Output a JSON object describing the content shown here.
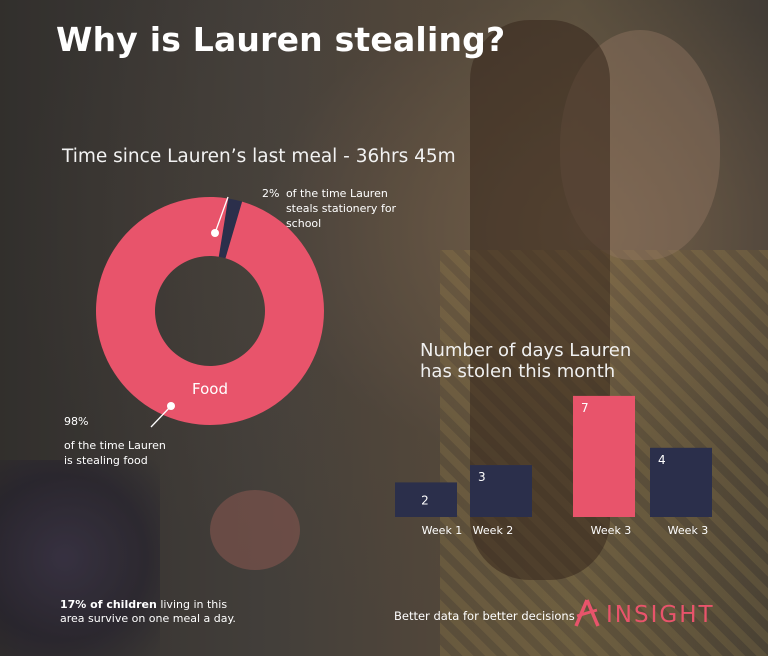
{
  "title": "Why is Lauren stealing?",
  "chart_data": [
    {
      "type": "pie",
      "title": "Time since Lauren’s last meal - 36hrs 45m",
      "slices": [
        {
          "label": "Food",
          "value": 98,
          "color": "#e8546b"
        },
        {
          "label": "Stationery",
          "value": 2,
          "color": "#2b2f4b"
        }
      ],
      "annotations": [
        {
          "value_text": "2%",
          "text": "of the time Lauren steals stationery for school"
        },
        {
          "value_text": "98%",
          "text": "of the time Lauren is stealing food"
        }
      ],
      "inner_label": "Food"
    },
    {
      "type": "bar",
      "title": "Number of days Lauren has stolen this month",
      "categories": [
        "Week 1",
        "Week 2",
        "Week 3",
        "Week 3"
      ],
      "values": [
        2,
        3,
        7,
        4
      ],
      "colors": [
        "#2b2f4b",
        "#2b2f4b",
        "#e8546b",
        "#2b2f4b"
      ],
      "ylim": [
        0,
        7
      ]
    }
  ],
  "footnote": {
    "bold": "17% of children",
    "rest_line1": " living in this",
    "line2": "area survive on one meal a day."
  },
  "tagline": "Better data for better decisions",
  "logo": {
    "text": "INSIGHT",
    "icon": "insight-a-logo-icon",
    "color": "#e8546b"
  },
  "colors": {
    "accent": "#e8546b",
    "navy": "#2b2f4b"
  }
}
